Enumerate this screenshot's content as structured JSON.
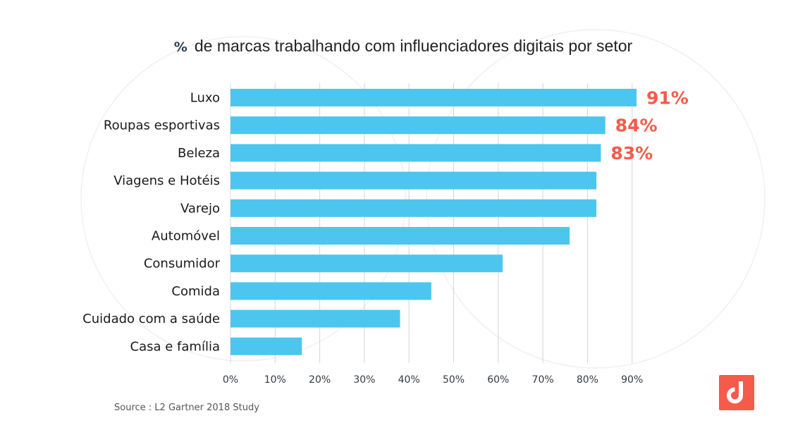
{
  "title": {
    "prefix": "%",
    "text": "de marcas trabalhando com influenciadores digitais por setor"
  },
  "source": "Source : L2 Gartner 2018 Study",
  "colors": {
    "bar": "#4cc6ef",
    "highlight": "#f65a4a",
    "logo": "#f65a4a",
    "grid": "#d5d5d5"
  },
  "logo_icon": "brand-d-logo-icon",
  "chart_data": {
    "type": "bar",
    "orientation": "horizontal",
    "title": "% de marcas trabalhando com influenciadores digitais por setor",
    "categories": [
      "Luxo",
      "Roupas esportivas",
      "Beleza",
      "Viagens e Hotéis",
      "Varejo",
      "Automóvel",
      "Consumidor",
      "Comida",
      "Cuidado com a saúde",
      "Casa e família"
    ],
    "values": [
      91,
      84,
      83,
      82,
      82,
      76,
      61,
      45,
      38,
      16
    ],
    "unit": "%",
    "data_labels": [
      {
        "category": "Luxo",
        "text": "91%"
      },
      {
        "category": "Roupas esportivas",
        "text": "84%"
      },
      {
        "category": "Beleza",
        "text": "83%"
      }
    ],
    "xticks": [
      "0%",
      "10%",
      "20%",
      "30%",
      "40%",
      "50%",
      "60%",
      "70%",
      "80%",
      "90%"
    ],
    "xlim": [
      0,
      90
    ],
    "xlabel": "",
    "ylabel": "",
    "grid": "vertical",
    "legend": "none"
  }
}
